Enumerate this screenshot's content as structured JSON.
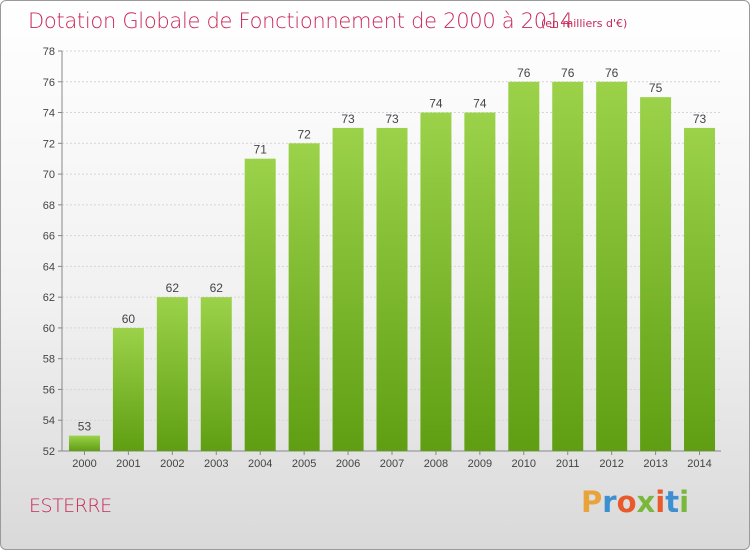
{
  "title": "Dotation Globale de Fonctionnement de 2000 à 2014",
  "subtitle": "(en milliers d'€)",
  "commune": "ESTERRE",
  "logo": {
    "letters": [
      "P",
      "r",
      "o",
      "x",
      "i",
      "t",
      "i"
    ],
    "colors": [
      "#e8a33a",
      "#3c8fd0",
      "#e85a2c",
      "#79b83a",
      "#e85a2c",
      "#3c8fd0",
      "#79b83a"
    ]
  },
  "colors": {
    "title": "#c8285a",
    "bar_top": "#9bd24a",
    "bar_bottom": "#5f9e12"
  },
  "chart_data": {
    "type": "bar",
    "categories": [
      "2000",
      "2001",
      "2002",
      "2003",
      "2004",
      "2005",
      "2006",
      "2007",
      "2008",
      "2009",
      "2010",
      "2011",
      "2012",
      "2013",
      "2014"
    ],
    "values": [
      53,
      60,
      62,
      62,
      71,
      72,
      73,
      73,
      74,
      74,
      76,
      76,
      76,
      75,
      73
    ],
    "ylim": [
      52,
      78
    ],
    "yticks": [
      52,
      54,
      56,
      58,
      60,
      62,
      64,
      66,
      68,
      70,
      72,
      74,
      76,
      78
    ],
    "grid": true,
    "xlabel": "",
    "ylabel": ""
  }
}
